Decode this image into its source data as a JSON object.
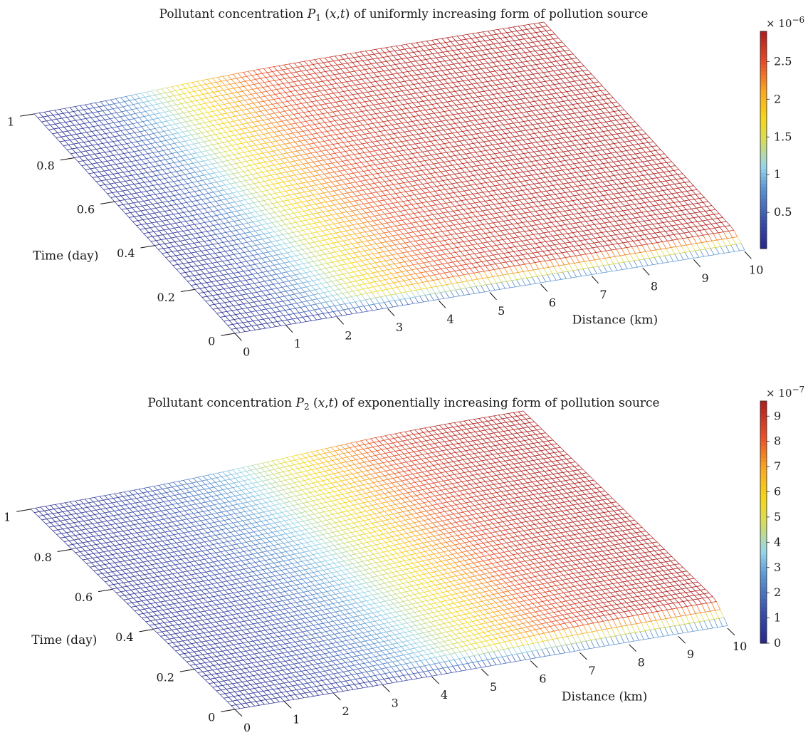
{
  "chart_data": [
    {
      "type": "surface",
      "title_parts": [
        "Pollutant concentration ",
        "P",
        "1",
        " (",
        "x",
        ",",
        "t",
        ") of uniformly increasing form of pollution source"
      ],
      "xlabel": "Distance (km)",
      "ylabel": "Time (day)",
      "x_ticks": [
        "0",
        "1",
        "2",
        "3",
        "4",
        "5",
        "6",
        "7",
        "8",
        "9",
        "10"
      ],
      "t_ticks": [
        "0",
        "0.2",
        "0.4",
        "0.6",
        "0.8",
        "1"
      ],
      "xlim": [
        0,
        10
      ],
      "tlim": [
        0,
        1
      ],
      "colorbar": {
        "exponent_label": "× 10",
        "exponent_power": "−6",
        "ticks": [
          "0.5",
          "1",
          "1.5",
          "2",
          "2.5"
        ],
        "tick_values": [
          0.5,
          1,
          1.5,
          2,
          2.5
        ],
        "range": [
          0.02,
          2.9
        ]
      },
      "zlim": [
        0,
        2.9
      ],
      "profile_x": [
        0,
        0.5,
        1,
        1.5,
        2,
        2.5,
        3,
        3.5,
        4,
        4.5,
        5,
        5.5,
        6,
        6.5,
        7,
        7.5,
        8,
        8.5,
        9,
        9.5,
        10
      ],
      "profile_z": [
        0.05,
        0.15,
        0.3,
        0.55,
        0.95,
        1.35,
        1.75,
        2.05,
        2.3,
        2.5,
        2.62,
        2.72,
        2.78,
        2.82,
        2.85,
        2.87,
        2.88,
        2.89,
        2.9,
        2.9,
        2.9
      ],
      "colormap": "jet"
    },
    {
      "type": "surface",
      "title_parts": [
        "Pollutant concentration ",
        "P",
        "2",
        " (",
        "x",
        ",",
        "t",
        ") of exponentially increasing form of pollution source"
      ],
      "xlabel": "Distance (km)",
      "ylabel": "Time (day)",
      "x_ticks": [
        "0",
        "1",
        "2",
        "3",
        "4",
        "5",
        "6",
        "7",
        "8",
        "9",
        "10"
      ],
      "t_ticks": [
        "0",
        "0.2",
        "0.4",
        "0.6",
        "0.8",
        "1"
      ],
      "xlim": [
        0,
        10
      ],
      "tlim": [
        0,
        1
      ],
      "colorbar": {
        "exponent_label": "× 10",
        "exponent_power": "−7",
        "ticks": [
          "0",
          "1",
          "2",
          "3",
          "4",
          "5",
          "6",
          "7",
          "8",
          "9"
        ],
        "tick_values": [
          0,
          1,
          2,
          3,
          4,
          5,
          6,
          7,
          8,
          9
        ],
        "range": [
          0,
          9.6
        ]
      },
      "zlim": [
        0,
        9.6
      ],
      "profile_x": [
        0,
        0.5,
        1,
        1.5,
        2,
        2.5,
        3,
        3.5,
        4,
        4.5,
        5,
        5.5,
        6,
        6.5,
        7,
        7.5,
        8,
        8.5,
        9,
        9.5,
        10
      ],
      "profile_z": [
        0.2,
        0.4,
        0.6,
        0.85,
        1.1,
        1.5,
        2.0,
        2.6,
        3.3,
        4.1,
        5.0,
        5.9,
        6.8,
        7.6,
        8.3,
        8.8,
        9.2,
        9.4,
        9.5,
        9.6,
        9.6
      ],
      "colormap": "jet"
    }
  ]
}
